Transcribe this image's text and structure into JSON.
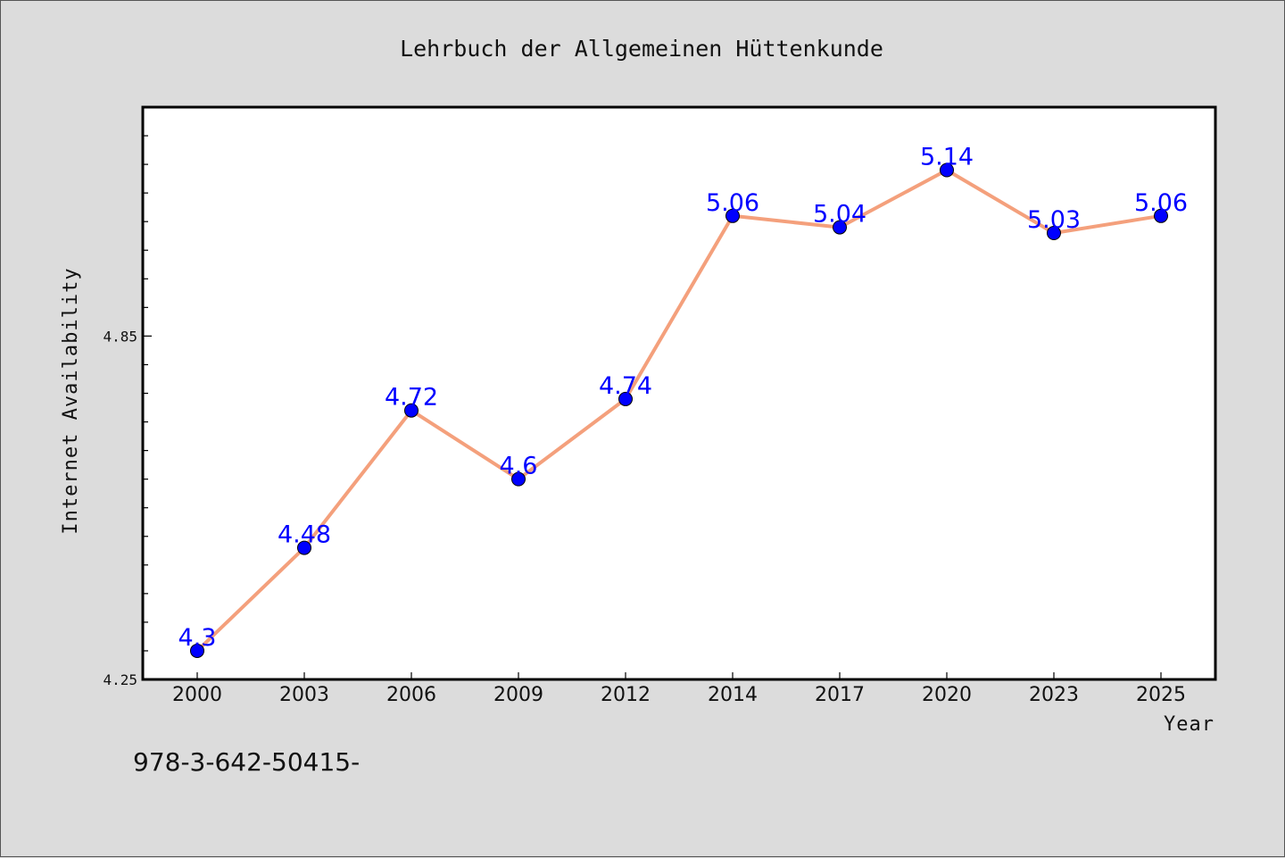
{
  "chart_data": {
    "type": "line",
    "title": "Lehrbuch der Allgemeinen Hüttenkunde",
    "xlabel": "Year",
    "ylabel": "Internet Availability",
    "categories": [
      "2000",
      "2003",
      "2006",
      "2009",
      "2012",
      "2014",
      "2017",
      "2020",
      "2023",
      "2025"
    ],
    "series": [
      {
        "values": [
          4.3,
          4.48,
          4.72,
          4.6,
          4.74,
          5.06,
          5.04,
          5.14,
          5.03,
          5.06
        ],
        "labels": [
          "4.3",
          "4.48",
          "4.72",
          "4.6",
          "4.74",
          "5.06",
          "5.04",
          "5.14",
          "5.03",
          "5.06"
        ],
        "line_color": "#f4a07c",
        "marker_color": "#0000ff"
      }
    ],
    "ylim": [
      4.25,
      5.25
    ],
    "yticks": [
      "4.25",
      "4.85"
    ],
    "grid": false,
    "legend": "none"
  },
  "footer": {
    "isbn": "978-3-642-50415-"
  },
  "colors": {
    "background": "#dcdcdc",
    "plot_area": "#ffffff",
    "line": "#f4a07c",
    "marker": "#0000ff",
    "data_label": "#0000ff"
  }
}
